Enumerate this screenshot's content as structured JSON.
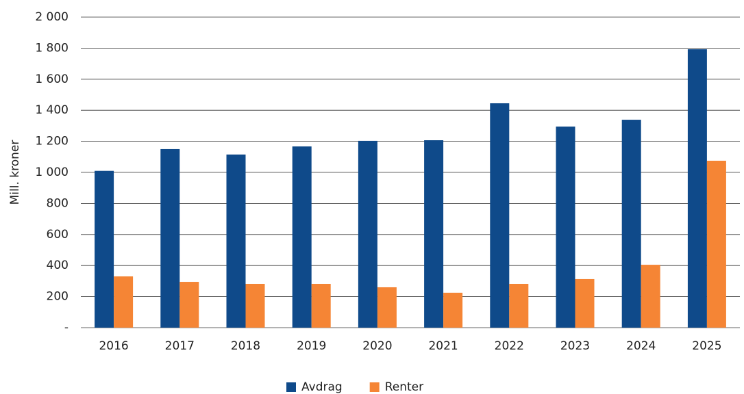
{
  "chart_data": {
    "type": "bar",
    "y_label": "Mill. kroner",
    "categories": [
      "2016",
      "2017",
      "2018",
      "2019",
      "2020",
      "2021",
      "2022",
      "2023",
      "2024",
      "2025"
    ],
    "series": [
      {
        "name": "Avdrag",
        "color": "#0f4a8a",
        "values": [
          1010,
          1150,
          1115,
          1167,
          1203,
          1207,
          1445,
          1295,
          1339,
          1793
        ]
      },
      {
        "name": "Renter",
        "color": "#f58535",
        "values": [
          330,
          295,
          282,
          282,
          260,
          225,
          282,
          313,
          405,
          1075
        ]
      }
    ],
    "ylim": [
      0,
      2000
    ],
    "yticks": [
      {
        "value": 0,
        "label": "-"
      },
      200,
      400,
      600,
      800,
      {
        "value": 1000,
        "label": "1 000"
      },
      {
        "value": 1200,
        "label": "1 200"
      },
      {
        "value": 1400,
        "label": "1 400"
      },
      {
        "value": 1600,
        "label": "1 600"
      },
      {
        "value": 1800,
        "label": "1 800"
      },
      {
        "value": 2000,
        "label": "2 000"
      }
    ],
    "grid": true,
    "legend": "bottom"
  }
}
